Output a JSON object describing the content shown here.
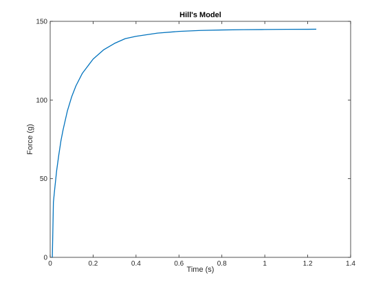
{
  "chart_data": {
    "type": "line",
    "title": "Hill's Model",
    "xlabel": "Time (s)",
    "ylabel": "Force (g)",
    "xlim": [
      0,
      1.4
    ],
    "ylim": [
      0,
      150
    ],
    "xticks": [
      0,
      0.2,
      0.4,
      0.6,
      0.8,
      1,
      1.2,
      1.4
    ],
    "xtick_labels": [
      "0",
      "0.2",
      "0.4",
      "0.6",
      "0.8",
      "1",
      "1.2",
      "1.4"
    ],
    "yticks": [
      0,
      50,
      100,
      150
    ],
    "ytick_labels": [
      "0",
      "50",
      "100",
      "150"
    ],
    "grid": false,
    "series": [
      {
        "color": "#0072bd",
        "x": [
          0.01,
          0.015,
          0.02,
          0.03,
          0.04,
          0.05,
          0.06,
          0.08,
          0.1,
          0.12,
          0.15,
          0.2,
          0.25,
          0.3,
          0.35,
          0.4,
          0.5,
          0.6,
          0.7,
          0.8,
          0.9,
          1.0,
          1.1,
          1.2,
          1.24
        ],
        "y": [
          0,
          35,
          42,
          55,
          65,
          74,
          81,
          93,
          102,
          109,
          117,
          126,
          132,
          136,
          139,
          140.5,
          142.5,
          143.6,
          144.2,
          144.5,
          144.7,
          144.8,
          144.9,
          144.95,
          145
        ]
      }
    ]
  }
}
